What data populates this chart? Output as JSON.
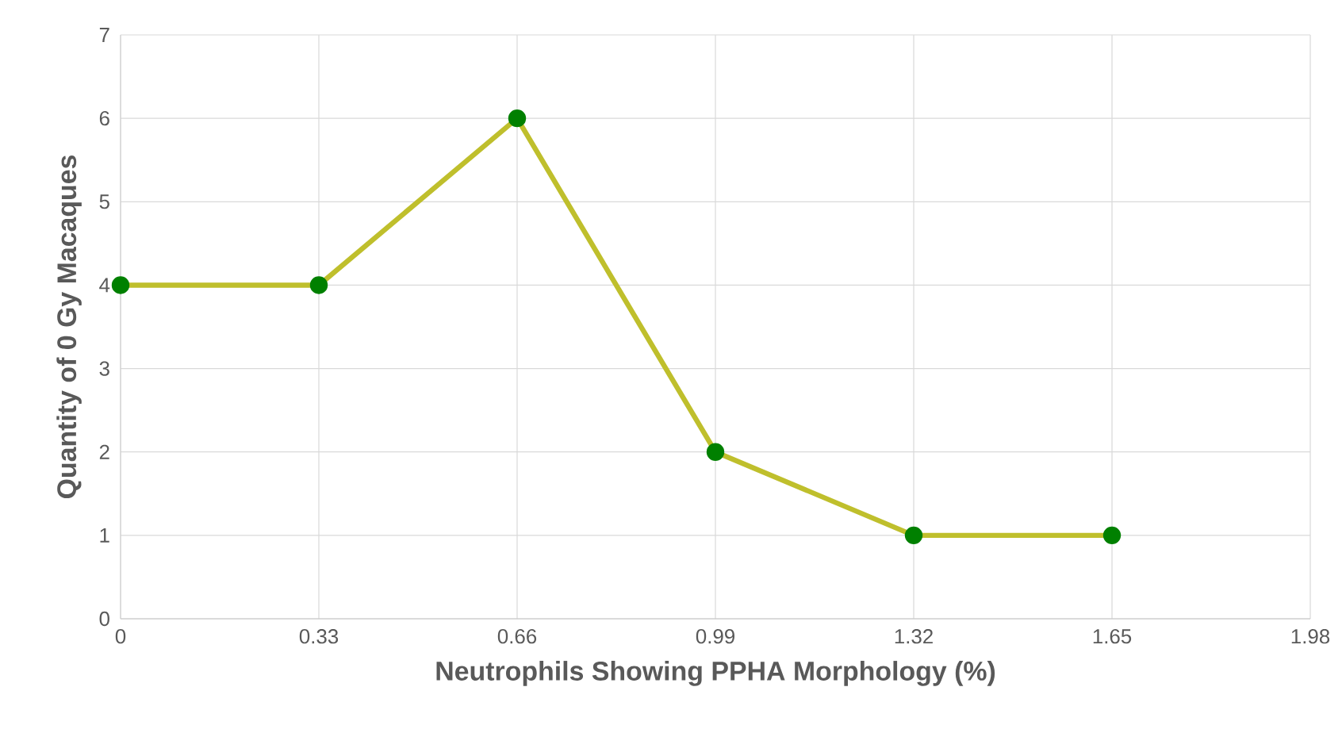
{
  "chart_data": {
    "type": "line",
    "xlabel": "Neutrophils Showing PPHA Morphology (%)",
    "ylabel": "Quantity of 0 Gy Macaques",
    "x": [
      0,
      0.33,
      0.66,
      0.99,
      1.32,
      1.65
    ],
    "series": [
      {
        "color": "#bfbf2c",
        "values": [
          4,
          4,
          6,
          2,
          1,
          1
        ]
      }
    ],
    "xlim": [
      0,
      1.98
    ],
    "xticks": [
      0,
      0.33,
      0.66,
      0.99,
      1.32,
      1.65,
      1.98
    ],
    "ylim": [
      0,
      7
    ],
    "yticks": [
      0,
      1,
      2,
      3,
      4,
      5,
      6,
      7
    ],
    "grid": true,
    "marker": "circle",
    "line_style": "solid"
  }
}
